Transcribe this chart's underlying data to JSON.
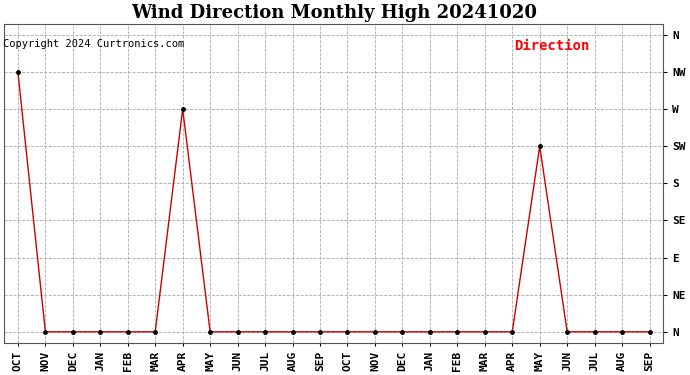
{
  "title": "Wind Direction Monthly High 20241020",
  "copyright_text": "Copyright 2024 Curtronics.com",
  "legend_label": "Direction",
  "x_labels": [
    "OCT",
    "NOV",
    "DEC",
    "JAN",
    "FEB",
    "MAR",
    "APR",
    "MAY",
    "JUN",
    "JUL",
    "AUG",
    "SEP",
    "OCT",
    "NOV",
    "DEC",
    "JAN",
    "FEB",
    "MAR",
    "APR",
    "MAY",
    "JUN",
    "JUL",
    "AUG",
    "SEP"
  ],
  "y_ticks": [
    0,
    1,
    2,
    3,
    4,
    5,
    6,
    7,
    8
  ],
  "y_tick_labels": [
    "N",
    "NE",
    "E",
    "SE",
    "S",
    "SW",
    "W",
    "NW",
    "N"
  ],
  "direction_values": [
    7,
    0,
    0,
    0,
    0,
    0,
    6,
    0,
    0,
    0,
    0,
    0,
    0,
    0,
    0,
    0,
    0,
    0,
    0,
    5,
    0,
    0,
    0,
    0
  ],
  "line_color": "#cc0000",
  "marker_color": "#000000",
  "grid_color": "#aaaaaa",
  "title_fontsize": 13,
  "axis_label_fontsize": 8,
  "copyright_fontsize": 7.5,
  "legend_fontsize": 10,
  "background_color": "#ffffff",
  "ylim": [
    -0.3,
    8.3
  ]
}
